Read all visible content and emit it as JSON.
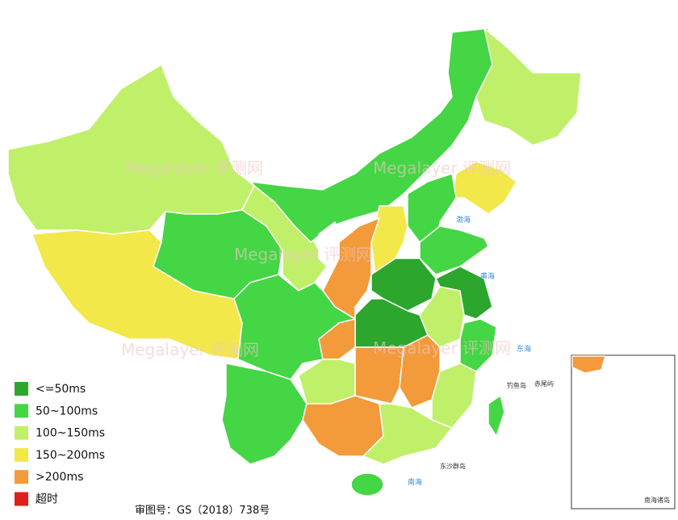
{
  "legend": [
    {
      "label": "<=50ms",
      "color": "#2ca62c"
    },
    {
      "label": "50~100ms",
      "color": "#44d644"
    },
    {
      "label": "100~150ms",
      "color": "#c0f06a"
    },
    {
      "label": "150~200ms",
      "color": "#f2e84a"
    },
    {
      "label": ">200ms",
      "color": "#f39a3a"
    },
    {
      "label": "超时",
      "color": "#e01e1a"
    }
  ],
  "watermark": "Megalayer 评测网",
  "approval": "审图号：GS（2018）738号",
  "seas": [
    "渤海",
    "黄海",
    "东海",
    "南海"
  ],
  "islands": [
    "钓鱼岛",
    "赤尾屿",
    "东沙群岛",
    "南海诸岛"
  ]
}
